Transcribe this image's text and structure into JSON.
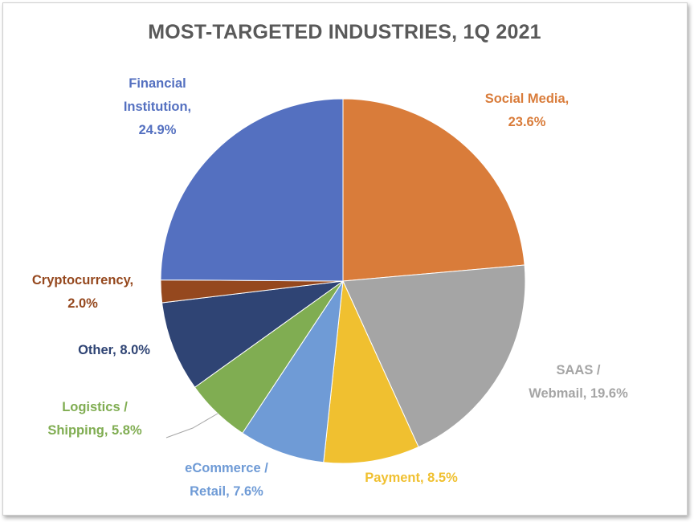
{
  "chart_data": {
    "type": "pie",
    "title": "MOST-TARGETED INDUSTRIES, 1Q 2021",
    "slices": [
      {
        "name": "Social Media",
        "value": 23.6,
        "label_lines": [
          "Social Media,",
          "23.6%"
        ],
        "color": "#d97c3a"
      },
      {
        "name": "SAAS / Webmail",
        "value": 19.6,
        "label_lines": [
          "SAAS /",
          "Webmail, 19.6%"
        ],
        "color": "#a5a5a5"
      },
      {
        "name": "Payment",
        "value": 8.5,
        "label_lines": [
          "Payment, 8.5%"
        ],
        "color": "#f0c030"
      },
      {
        "name": "eCommerce / Retail",
        "value": 7.6,
        "label_lines": [
          "eCommerce /",
          "Retail, 7.6%"
        ],
        "color": "#6f9bd6"
      },
      {
        "name": "Logistics / Shipping",
        "value": 5.8,
        "label_lines": [
          "Logistics /",
          "Shipping, 5.8%"
        ],
        "color": "#80ad52"
      },
      {
        "name": "Other",
        "value": 8.0,
        "label_lines": [
          "Other, 8.0%"
        ],
        "color": "#2f4474"
      },
      {
        "name": "Cryptocurrency",
        "value": 2.0,
        "label_lines": [
          "Cryptocurrency,",
          "2.0%"
        ],
        "color": "#95481e"
      },
      {
        "name": "Financial Institution",
        "value": 24.9,
        "label_lines": [
          "Financial",
          "Institution,",
          "24.9%"
        ],
        "color": "#5470c0"
      }
    ],
    "label_colors": [
      "#d97c3a",
      "#a5a5a5",
      "#f0c030",
      "#6f9bd6",
      "#80ad52",
      "#2f4474",
      "#95481e",
      "#5470c0"
    ],
    "start_angle_deg": 0,
    "direction": "clockwise",
    "legend": "none"
  }
}
